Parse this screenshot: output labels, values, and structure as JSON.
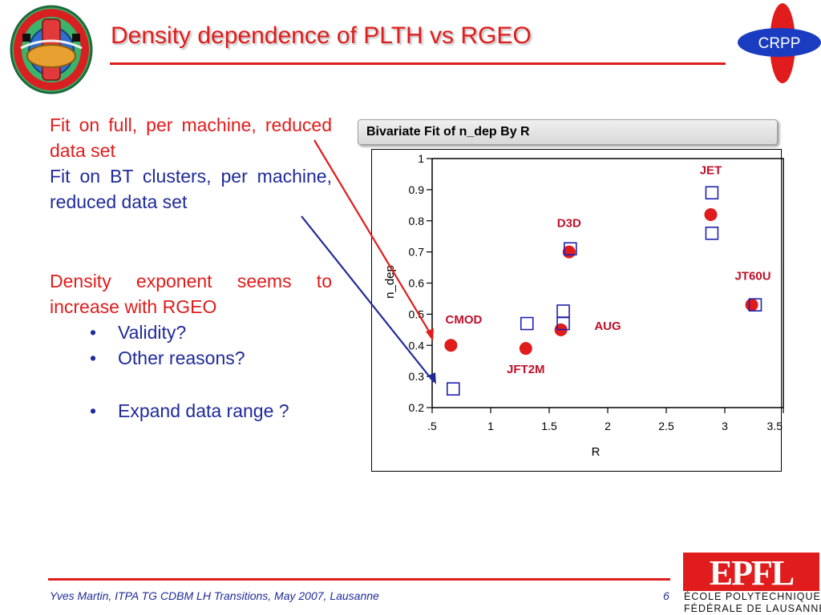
{
  "slide": {
    "title": "Density dependence of PLTH vs RGEO",
    "left_text": {
      "p1": "Fit on full, per machine, reduced data set",
      "p2": "Fit on BT clusters, per machine, reduced data set",
      "p3": "Density exponent seems to increase with RGEO",
      "bullets": [
        "Validity?",
        "Other reasons?",
        "Expand data range ?"
      ]
    },
    "footer": "Yves Martin, ITPA TG CDBM LH Transitions, May 2007, Lausanne",
    "page_number": "6",
    "logos": {
      "crpp": "CRPP",
      "epfl": "EPFL",
      "epfl_line1": "ÉCOLE POLYTECHNIQUE",
      "epfl_line2": "FÉDÉRALE DE LAUSANNE"
    },
    "colors": {
      "title_red": "#e01c1c",
      "text_blue": "#1f2a9a",
      "label_red": "#c0102a"
    }
  },
  "chart_data": {
    "type": "scatter",
    "header": "Bivariate Fit of n_dep By R",
    "xlabel": "R",
    "ylabel": "n_dep",
    "xlim": [
      0.5,
      3.5
    ],
    "ylim": [
      0.2,
      1.0
    ],
    "x_ticks": [
      ".5",
      "1",
      "1.5",
      "2",
      "2.5",
      "3",
      "3.5"
    ],
    "y_ticks": [
      "0.2",
      "0.3",
      "0.4",
      "0.5",
      "0.6",
      "0.7",
      "0.8",
      "0.9",
      "1"
    ],
    "series": [
      {
        "marker": "filled-circle",
        "color": "#e01c1c",
        "points": [
          {
            "x": 0.66,
            "y": 0.4
          },
          {
            "x": 1.3,
            "y": 0.39
          },
          {
            "x": 1.6,
            "y": 0.45
          },
          {
            "x": 1.67,
            "y": 0.7
          },
          {
            "x": 2.88,
            "y": 0.82
          },
          {
            "x": 3.23,
            "y": 0.53
          }
        ]
      },
      {
        "marker": "open-square",
        "color": "#2020b0",
        "points": [
          {
            "x": 0.68,
            "y": 0.26
          },
          {
            "x": 1.31,
            "y": 0.47
          },
          {
            "x": 1.62,
            "y": 0.51
          },
          {
            "x": 1.62,
            "y": 0.47
          },
          {
            "x": 1.68,
            "y": 0.71
          },
          {
            "x": 2.89,
            "y": 0.89
          },
          {
            "x": 2.89,
            "y": 0.76
          },
          {
            "x": 3.26,
            "y": 0.53
          }
        ]
      }
    ],
    "labels": [
      {
        "text": "CMOD",
        "x": 0.77,
        "y": 0.47
      },
      {
        "text": "JFT2M",
        "x": 1.3,
        "y": 0.31
      },
      {
        "text": "AUG",
        "x": 2.0,
        "y": 0.45
      },
      {
        "text": "D3D",
        "x": 1.67,
        "y": 0.78
      },
      {
        "text": "JET",
        "x": 2.88,
        "y": 0.95
      },
      {
        "text": "JT60U",
        "x": 3.24,
        "y": 0.61
      }
    ]
  }
}
